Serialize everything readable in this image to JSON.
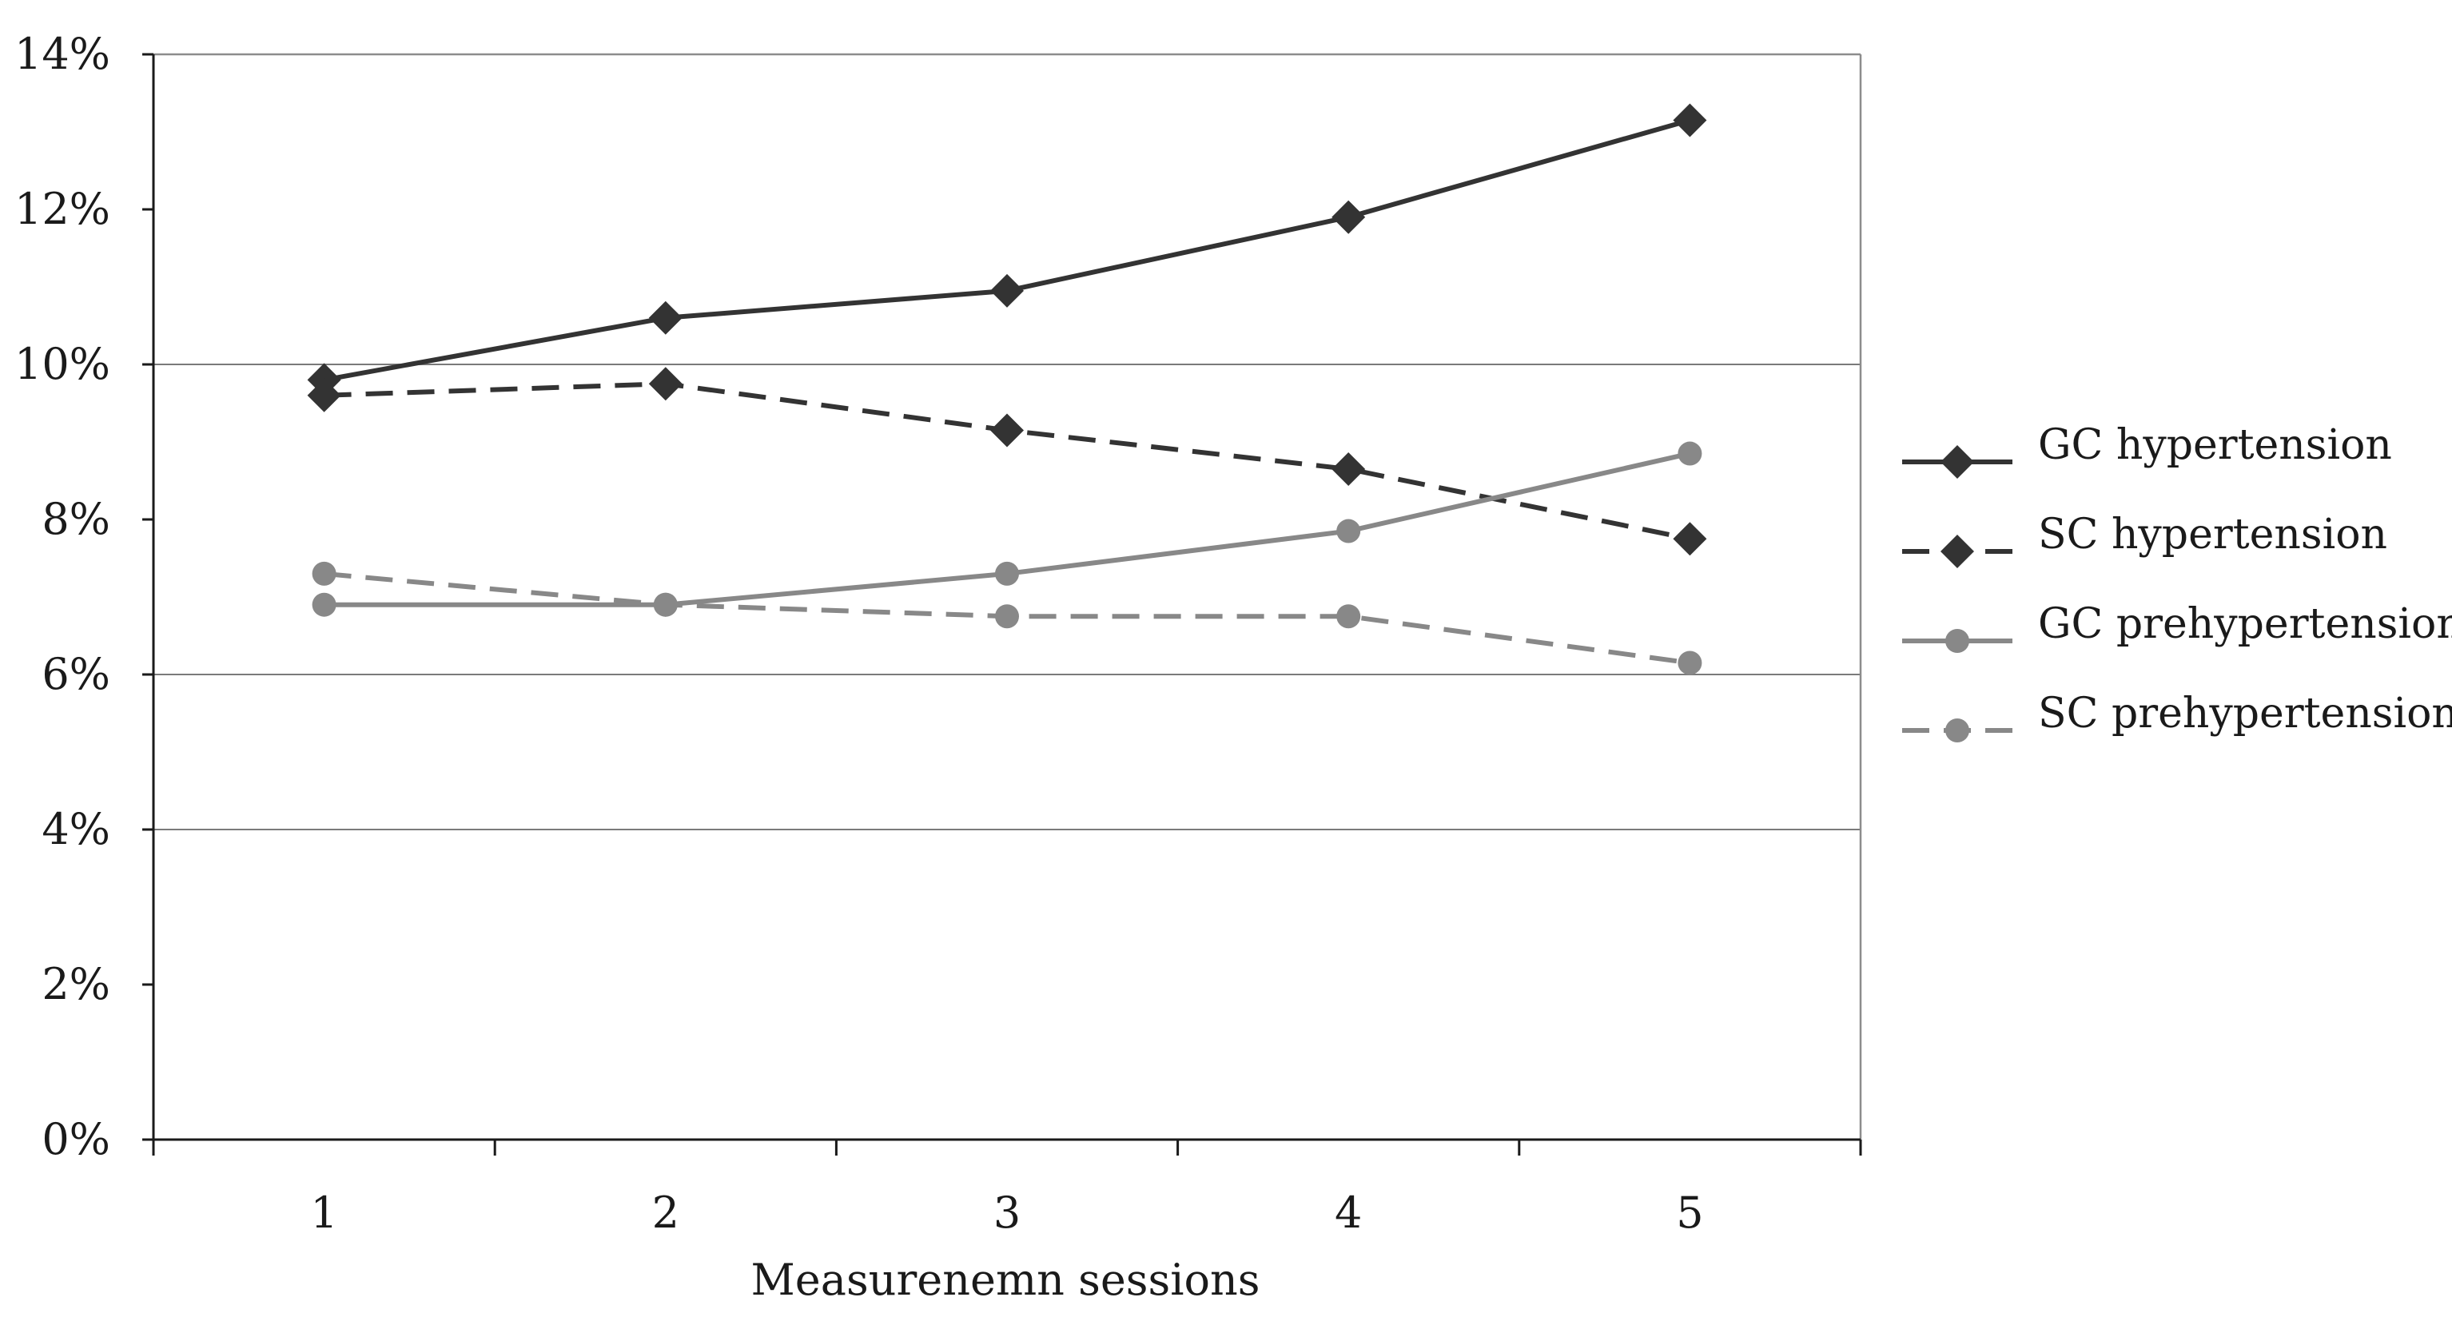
{
  "chart_data": {
    "type": "line",
    "title": "",
    "xlabel": "Measurenemn sessions",
    "ylabel": "",
    "categories": [
      "1",
      "2",
      "3",
      "4",
      "5"
    ],
    "ylim": [
      0,
      14
    ],
    "yticks": [
      0,
      2,
      4,
      6,
      8,
      10,
      12,
      14
    ],
    "ytick_labels": [
      "0%",
      "2%",
      "4%",
      "6%",
      "8%",
      "10%",
      "12%",
      "14%"
    ],
    "y_unit": "%",
    "grid": "horizontal at 4%, 6% and 10%",
    "legend_position": "right",
    "series": [
      {
        "name": "GC hypertension",
        "values": [
          9.8,
          10.6,
          10.95,
          11.9,
          13.15
        ],
        "color": "#333333",
        "dashed": false,
        "marker": "diamond"
      },
      {
        "name": "SC hypertension",
        "values": [
          9.6,
          9.75,
          9.15,
          8.65,
          7.75
        ],
        "color": "#333333",
        "dashed": true,
        "marker": "diamond"
      },
      {
        "name": "GC prehypertension",
        "values": [
          6.9,
          6.9,
          7.3,
          7.85,
          8.85
        ],
        "color": "#888888",
        "dashed": false,
        "marker": "circle"
      },
      {
        "name": "SC prehypertension",
        "values": [
          7.3,
          6.9,
          6.75,
          6.75,
          6.15
        ],
        "color": "#888888",
        "dashed": true,
        "marker": "circle"
      }
    ]
  }
}
